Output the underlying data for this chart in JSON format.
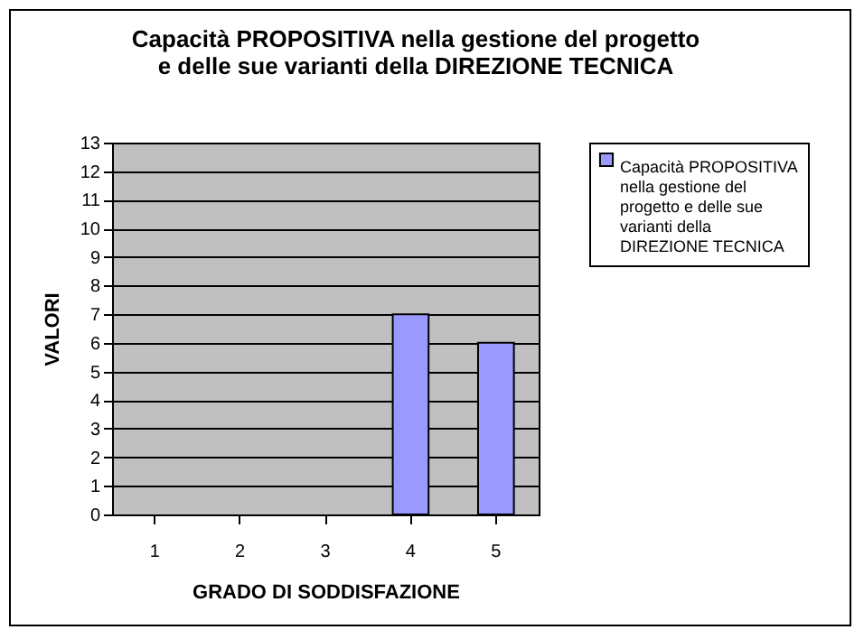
{
  "chart_data": {
    "type": "bar",
    "title": "Capacità PROPOSITIVA nella gestione del progetto e delle sue varianti della DIREZIONE TECNICA",
    "xlabel": "GRADO DI SODDISFAZIONE",
    "ylabel": "VALORI",
    "categories": [
      "1",
      "2",
      "3",
      "4",
      "5"
    ],
    "series": [
      {
        "name": "Capacità PROPOSITIVA nella gestione del progetto e delle sue varianti della DIREZIONE TECNICA",
        "color": "#9999ff",
        "values": [
          0,
          0,
          0,
          7,
          6
        ]
      }
    ],
    "ylim": [
      0,
      13
    ],
    "yticks": [
      0,
      1,
      2,
      3,
      4,
      5,
      6,
      7,
      8,
      9,
      10,
      11,
      12,
      13
    ],
    "grid": "y",
    "legend": "right"
  }
}
